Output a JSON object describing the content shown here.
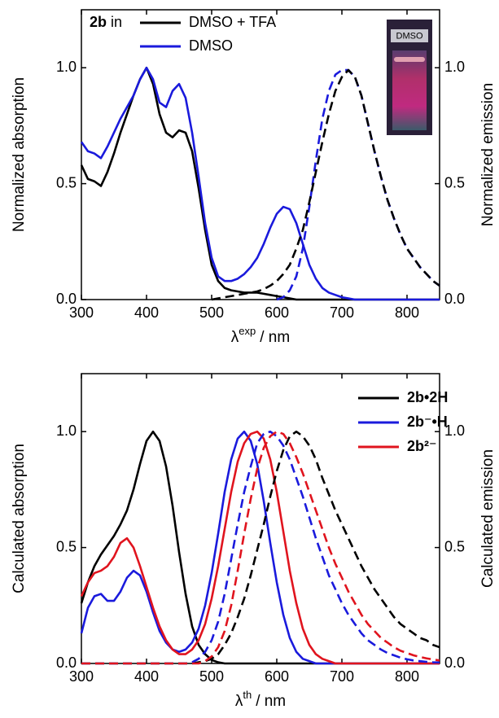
{
  "chart_data": [
    {
      "type": "line",
      "legend_title": {
        "bold": "2b",
        "text": "in"
      },
      "inset": {
        "label": "DMSO"
      },
      "xlabel": {
        "symbol": "λ",
        "superscript": "exp",
        "unit": "/ nm"
      },
      "ylabel": "Normalized absorption",
      "y2label": "Normalized emission",
      "xlim": [
        300,
        850
      ],
      "ylim": [
        0,
        1.25
      ],
      "y2lim": [
        0,
        1.25
      ],
      "xticks": [
        300,
        400,
        500,
        600,
        700,
        800
      ],
      "yticks": [
        {
          "value": 0,
          "label": "0.0"
        },
        {
          "value": 0.5,
          "label": "0.5"
        },
        {
          "value": 1,
          "label": "1.0"
        }
      ],
      "y2ticks": [
        {
          "value": 0,
          "label": "0.0"
        },
        {
          "value": 0.5,
          "label": "0.5"
        },
        {
          "value": 1,
          "label": "1.0"
        }
      ],
      "legend": "upper center",
      "x": [
        300,
        310,
        320,
        330,
        340,
        350,
        360,
        370,
        380,
        390,
        400,
        410,
        420,
        430,
        440,
        450,
        460,
        470,
        480,
        490,
        500,
        510,
        520,
        530,
        540,
        550,
        560,
        570,
        580,
        590,
        600,
        610,
        620,
        630,
        640,
        650,
        660,
        670,
        680,
        690,
        700,
        710,
        720,
        730,
        740,
        750,
        760,
        770,
        780,
        790,
        800,
        810,
        820,
        830,
        840,
        850
      ],
      "series": [
        {
          "name": "DMSO + TFA",
          "color": "#000000",
          "values": [
            0.58,
            0.52,
            0.51,
            0.49,
            0.55,
            0.63,
            0.72,
            0.8,
            0.88,
            0.95,
            1.0,
            0.93,
            0.8,
            0.72,
            0.7,
            0.73,
            0.72,
            0.64,
            0.48,
            0.3,
            0.15,
            0.08,
            0.05,
            0.04,
            0.035,
            0.03,
            0.03,
            0.03,
            0.025,
            0.02,
            0.015,
            0.01,
            0.005,
            0,
            0,
            0,
            0,
            0,
            0,
            0,
            0,
            0,
            0,
            0,
            0,
            0,
            0,
            0,
            0,
            0,
            0,
            0,
            0,
            0,
            0,
            0
          ]
        },
        {
          "name": "DMSO",
          "color": "#1a1adc",
          "values": [
            0.68,
            0.64,
            0.63,
            0.61,
            0.66,
            0.72,
            0.78,
            0.83,
            0.88,
            0.95,
            1.0,
            0.95,
            0.85,
            0.83,
            0.9,
            0.93,
            0.87,
            0.72,
            0.53,
            0.33,
            0.18,
            0.1,
            0.08,
            0.08,
            0.09,
            0.11,
            0.14,
            0.18,
            0.24,
            0.31,
            0.37,
            0.4,
            0.39,
            0.33,
            0.24,
            0.15,
            0.09,
            0.05,
            0.03,
            0.02,
            0.01,
            0.005,
            0,
            0,
            0,
            0,
            0,
            0,
            0,
            0,
            0,
            0,
            0,
            0,
            0,
            0
          ]
        },
        {
          "color": "#1a1adc",
          "dashed": true,
          "axis": "y2",
          "values": [
            null,
            null,
            null,
            null,
            null,
            null,
            null,
            null,
            null,
            null,
            null,
            null,
            null,
            null,
            null,
            null,
            null,
            null,
            null,
            null,
            null,
            null,
            null,
            null,
            null,
            null,
            null,
            null,
            null,
            null,
            0,
            0.01,
            0.04,
            0.1,
            0.22,
            0.4,
            0.6,
            0.78,
            0.9,
            0.97,
            0.99,
            0.99,
            0.96,
            0.88,
            0.76,
            0.64,
            0.53,
            0.43,
            0.35,
            0.28,
            0.22,
            0.18,
            0.14,
            0.11,
            0.08,
            0.06
          ]
        },
        {
          "color": "#000000",
          "dashed": true,
          "axis": "y2",
          "values": [
            null,
            null,
            null,
            null,
            null,
            null,
            null,
            null,
            null,
            null,
            null,
            null,
            null,
            null,
            null,
            null,
            null,
            null,
            null,
            null,
            0,
            0.005,
            0.01,
            0.015,
            0.02,
            0.025,
            0.03,
            0.035,
            0.045,
            0.06,
            0.08,
            0.11,
            0.15,
            0.22,
            0.3,
            0.42,
            0.55,
            0.68,
            0.8,
            0.9,
            0.96,
            0.99,
            0.96,
            0.88,
            0.76,
            0.64,
            0.53,
            0.43,
            0.35,
            0.28,
            0.22,
            0.18,
            0.14,
            0.11,
            0.08,
            0.06
          ]
        }
      ]
    },
    {
      "type": "line",
      "xlabel": {
        "symbol": "λ",
        "superscript": "th",
        "unit": "/ nm"
      },
      "ylabel": "Calculated absorption",
      "y2label": "Calculated emission",
      "xlim": [
        300,
        850
      ],
      "ylim": [
        0,
        1.25
      ],
      "y2lim": [
        0,
        1.25
      ],
      "xticks": [
        300,
        400,
        500,
        600,
        700,
        800
      ],
      "yticks": [
        {
          "value": 0,
          "label": "0.0"
        },
        {
          "value": 0.5,
          "label": "0.5"
        },
        {
          "value": 1,
          "label": "1.0"
        }
      ],
      "y2ticks": [
        {
          "value": 0,
          "label": "0.0"
        },
        {
          "value": 0.5,
          "label": "0.5"
        },
        {
          "value": 1,
          "label": "1.0"
        }
      ],
      "legend": "upper right",
      "legend_text_colored": true,
      "x": [
        300,
        310,
        320,
        330,
        340,
        350,
        360,
        370,
        380,
        390,
        400,
        410,
        420,
        430,
        440,
        450,
        460,
        470,
        480,
        490,
        500,
        510,
        520,
        530,
        540,
        550,
        560,
        570,
        580,
        590,
        600,
        610,
        620,
        630,
        640,
        650,
        660,
        670,
        680,
        690,
        700,
        710,
        720,
        730,
        740,
        750,
        760,
        770,
        780,
        790,
        800,
        810,
        820,
        830,
        840,
        850
      ],
      "series": [
        {
          "name": "2b•2H",
          "color": "#000000",
          "values": [
            0.26,
            0.35,
            0.42,
            0.47,
            0.51,
            0.55,
            0.6,
            0.66,
            0.75,
            0.86,
            0.96,
            1.0,
            0.96,
            0.85,
            0.68,
            0.48,
            0.3,
            0.16,
            0.08,
            0.04,
            0.015,
            0.005,
            0,
            0,
            0,
            0,
            0,
            0,
            0,
            0,
            0,
            0,
            0,
            0,
            0,
            0,
            0,
            0,
            0,
            0,
            0,
            0,
            0,
            0,
            0,
            0,
            0,
            0,
            0,
            0,
            0,
            0,
            0,
            0,
            0,
            0
          ]
        },
        {
          "name": "2b⁻•H",
          "color": "#1a1adc",
          "values": [
            0.13,
            0.24,
            0.29,
            0.3,
            0.27,
            0.27,
            0.31,
            0.37,
            0.4,
            0.38,
            0.31,
            0.22,
            0.14,
            0.09,
            0.06,
            0.05,
            0.06,
            0.09,
            0.15,
            0.25,
            0.39,
            0.56,
            0.74,
            0.88,
            0.97,
            1.0,
            0.96,
            0.86,
            0.7,
            0.52,
            0.35,
            0.21,
            0.11,
            0.05,
            0.02,
            0.01,
            0,
            0,
            0,
            0,
            0,
            0,
            0,
            0,
            0,
            0,
            0,
            0,
            0,
            0,
            0,
            0,
            0,
            0,
            0,
            0
          ]
        },
        {
          "name": "2b²⁻",
          "color": "#e0141e",
          "values": [
            0.29,
            0.35,
            0.39,
            0.4,
            0.42,
            0.46,
            0.52,
            0.54,
            0.5,
            0.42,
            0.33,
            0.24,
            0.16,
            0.1,
            0.06,
            0.04,
            0.04,
            0.06,
            0.1,
            0.17,
            0.28,
            0.42,
            0.58,
            0.74,
            0.87,
            0.95,
            0.99,
            1.0,
            0.97,
            0.88,
            0.74,
            0.57,
            0.4,
            0.26,
            0.15,
            0.08,
            0.04,
            0.02,
            0.01,
            0,
            0,
            0,
            0,
            0,
            0,
            0,
            0,
            0,
            0,
            0,
            0,
            0,
            0,
            0,
            0,
            0
          ]
        },
        {
          "color": "#000000",
          "dashed": true,
          "axis": "y2",
          "values": [
            0,
            0,
            0,
            0,
            0,
            0,
            0,
            0,
            0,
            0,
            0,
            0,
            0,
            0,
            0,
            0,
            0,
            0,
            0.005,
            0.01,
            0.02,
            0.04,
            0.08,
            0.13,
            0.2,
            0.28,
            0.38,
            0.49,
            0.6,
            0.72,
            0.83,
            0.92,
            0.98,
            1.0,
            0.98,
            0.94,
            0.88,
            0.8,
            0.73,
            0.66,
            0.6,
            0.54,
            0.48,
            0.42,
            0.37,
            0.32,
            0.28,
            0.24,
            0.2,
            0.17,
            0.15,
            0.13,
            0.11,
            0.1,
            0.08,
            0.07
          ]
        },
        {
          "color": "#1a1adc",
          "dashed": true,
          "axis": "y2",
          "values": [
            0,
            0,
            0,
            0,
            0,
            0,
            0,
            0,
            0,
            0,
            0,
            0,
            0,
            0,
            0,
            0,
            0,
            0.005,
            0.02,
            0.05,
            0.1,
            0.18,
            0.3,
            0.45,
            0.6,
            0.74,
            0.85,
            0.95,
            0.99,
            1.0,
            0.98,
            0.94,
            0.88,
            0.8,
            0.72,
            0.63,
            0.54,
            0.46,
            0.38,
            0.32,
            0.26,
            0.21,
            0.17,
            0.13,
            0.1,
            0.08,
            0.06,
            0.045,
            0.035,
            0.025,
            0.018,
            0.013,
            0.01,
            0.007,
            0.005,
            0.004
          ]
        },
        {
          "color": "#e0141e",
          "dashed": true,
          "axis": "y2",
          "values": [
            0,
            0,
            0,
            0,
            0,
            0,
            0,
            0,
            0,
            0,
            0,
            0,
            0,
            0,
            0,
            0,
            0,
            0,
            0,
            0.01,
            0.03,
            0.07,
            0.14,
            0.25,
            0.4,
            0.56,
            0.71,
            0.84,
            0.93,
            0.98,
            1.0,
            0.99,
            0.95,
            0.89,
            0.82,
            0.74,
            0.66,
            0.58,
            0.5,
            0.43,
            0.37,
            0.31,
            0.26,
            0.21,
            0.17,
            0.14,
            0.11,
            0.09,
            0.07,
            0.055,
            0.045,
            0.035,
            0.028,
            0.022,
            0.017,
            0.013
          ]
        }
      ]
    }
  ]
}
